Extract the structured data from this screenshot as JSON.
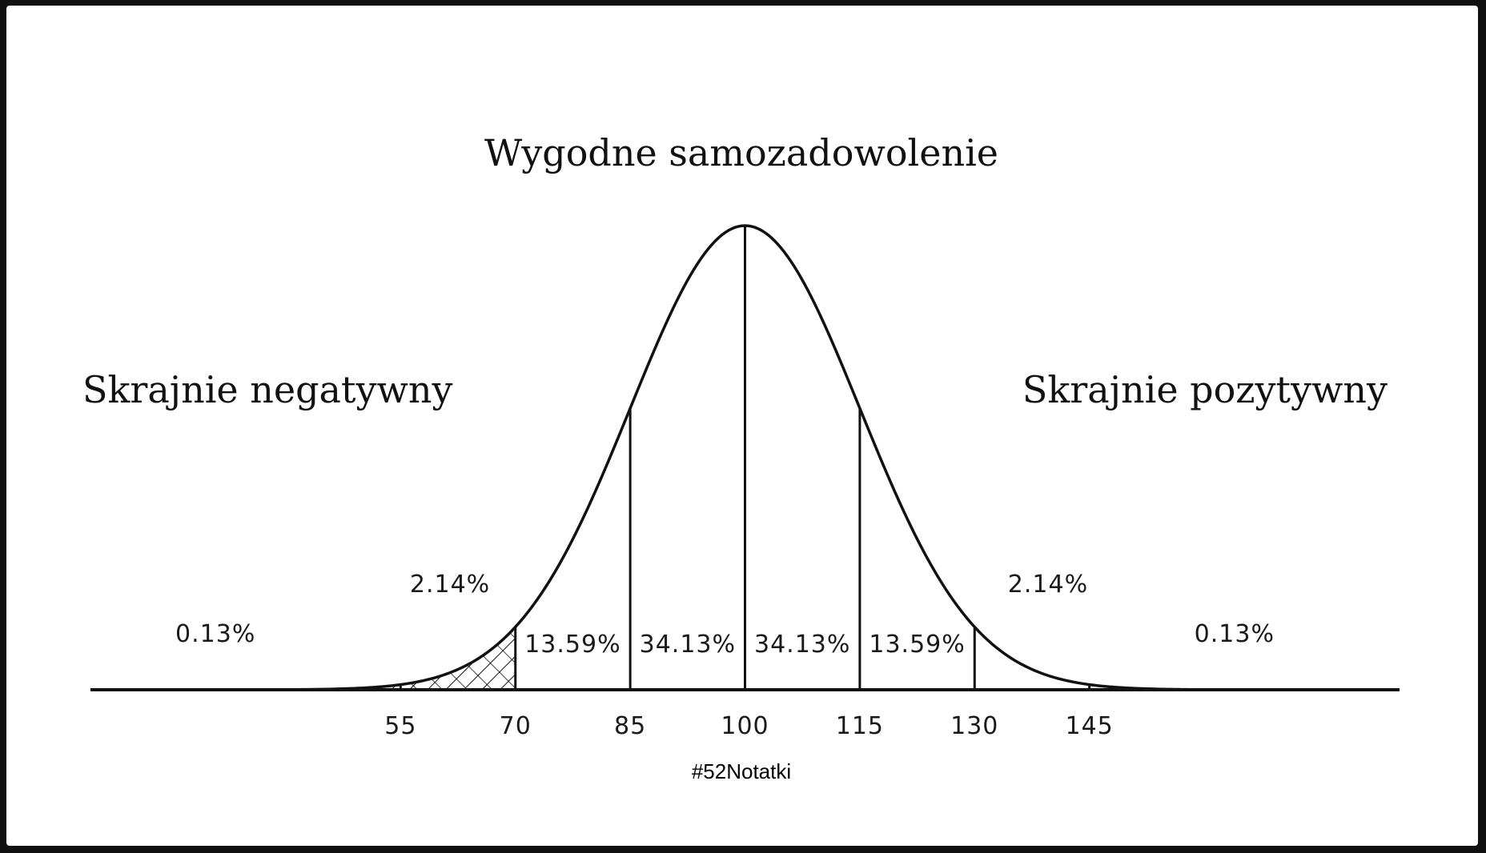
{
  "chart_data": {
    "type": "area",
    "title": "Wygodne samozadowolenie",
    "left_label": "Skrajnie negatywny",
    "right_label": "Skrajnie pozytywny",
    "distribution": "normal",
    "mean": 100,
    "sd": 15,
    "xlim": [
      15,
      185
    ],
    "x_ticks": [
      55,
      70,
      85,
      100,
      115,
      130,
      145
    ],
    "x_tick_labels": [
      "55",
      "70",
      "85",
      "100",
      "115",
      "130",
      "145"
    ],
    "segments": [
      {
        "from": 15,
        "to": 55,
        "label": "0.13%",
        "hatched": true
      },
      {
        "from": 55,
        "to": 70,
        "label": "2.14%",
        "hatched": true
      },
      {
        "from": 70,
        "to": 85,
        "label": "13.59%",
        "hatched": false
      },
      {
        "from": 85,
        "to": 100,
        "label": "34.13%",
        "hatched": false
      },
      {
        "from": 100,
        "to": 115,
        "label": "34.13%",
        "hatched": false
      },
      {
        "from": 115,
        "to": 130,
        "label": "13.59%",
        "hatched": false
      },
      {
        "from": 130,
        "to": 145,
        "label": "2.14%",
        "hatched": false
      },
      {
        "from": 145,
        "to": 185,
        "label": "0.13%",
        "hatched": false
      }
    ],
    "grid": false,
    "line_color": "#111111"
  },
  "footer": {
    "tag": "#52Notatki"
  }
}
